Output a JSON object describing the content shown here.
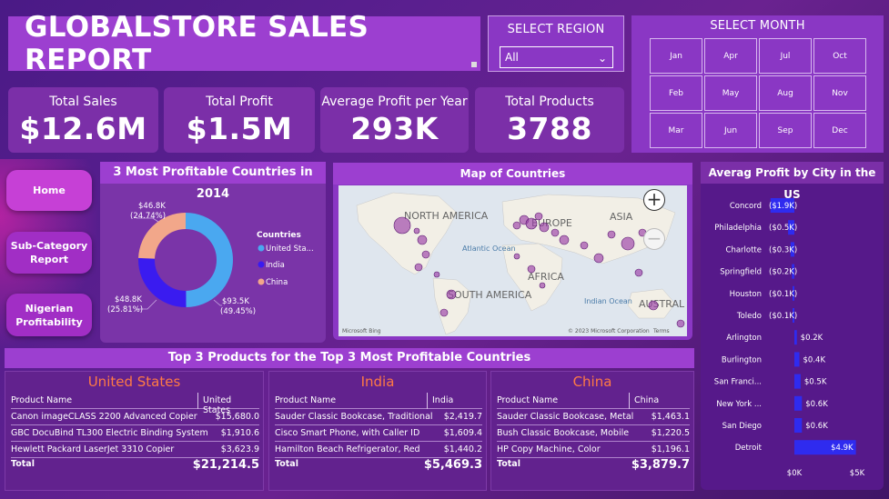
{
  "title": "GLOBALSTORE SALES REPORT",
  "region": {
    "label": "SELECT REGION",
    "selected": "All"
  },
  "month": {
    "label": "SELECT MONTH",
    "months": [
      "Jan",
      "Apr",
      "Jul",
      "Oct",
      "Feb",
      "May",
      "Aug",
      "Nov",
      "Mar",
      "Jun",
      "Sep",
      "Dec"
    ]
  },
  "kpis": [
    {
      "label": "Total Sales",
      "value": "$12.6M"
    },
    {
      "label": "Total Profit",
      "value": "$1.5M"
    },
    {
      "label": "Average Profit per Year",
      "value": "293K"
    },
    {
      "label": "Total Products",
      "value": "3788"
    }
  ],
  "nav": {
    "home": "Home",
    "subcategory": "Sub-Category Report",
    "nigerian": "Nigerian Profitability"
  },
  "donut": {
    "title": "3 Most Profitable Countries in 2014",
    "legend_title": "Countries",
    "legend": [
      "United Sta...",
      "India",
      "China"
    ],
    "colors": [
      "#4aa8f0",
      "#3a1bf0",
      "#f2a78a"
    ],
    "labels": [
      {
        "value": "$93.5K",
        "pct": "(49.45%)"
      },
      {
        "value": "$48.8K",
        "pct": "(25.81%)"
      },
      {
        "value": "$46.8K",
        "pct": "(24.74%)"
      }
    ]
  },
  "map": {
    "title": "Map of Countries",
    "regions": [
      "NORTH AMERICA",
      "EUROPE",
      "ASIA",
      "SOUTH AMERICA",
      "AFRICA",
      "AUSTRAL"
    ],
    "oceans": [
      "Atlantic Ocean",
      "Indian Ocean"
    ],
    "copyright": "© 2023 Microsoft Corporation",
    "terms": "Terms",
    "brand": "Microsoft Bing"
  },
  "city": {
    "title": "Averag Profit by City in the US",
    "axis": [
      "$0K",
      "$5K"
    ]
  },
  "chart_data": {
    "type": "bar",
    "title": "Averag Profit by City in the US",
    "categories": [
      "Concord",
      "Philadelphia",
      "Charlotte",
      "Springfield",
      "Houston",
      "Toledo",
      "Arlington",
      "Burlington",
      "San Franci...",
      "New York ...",
      "San Diego",
      "Detroit"
    ],
    "values": [
      -1.9,
      -0.5,
      -0.3,
      -0.2,
      -0.1,
      -0.1,
      0.2,
      0.4,
      0.5,
      0.6,
      0.6,
      4.9
    ],
    "value_labels": [
      "($1.9K)",
      "($0.5K)",
      "($0.3K)",
      "($0.2K)",
      "($0.1K)",
      "($0.1K)",
      "$0.2K",
      "$0.4K",
      "$0.5K",
      "$0.6K",
      "$0.6K",
      "$4.9K"
    ],
    "xlim": [
      -1.9,
      5
    ],
    "xticks": [
      "$0K",
      "$5K"
    ],
    "bar_color": "#2f2bef"
  },
  "products": {
    "title": "Top 3 Products for the Top 3 Most Profitable Countries",
    "header_product": "Product Name",
    "total_label": "Total",
    "panels": [
      {
        "country": "United States",
        "col": "United States",
        "rows": [
          {
            "name": "Canon imageCLASS 2200 Advanced Copier",
            "value": "$15,680.0"
          },
          {
            "name": "GBC DocuBind TL300 Electric Binding System",
            "value": "$1,910.6"
          },
          {
            "name": "Hewlett Packard LaserJet 3310 Copier",
            "value": "$3,623.9"
          }
        ],
        "total": "$21,214.5"
      },
      {
        "country": "India",
        "col": "India",
        "rows": [
          {
            "name": "Sauder Classic Bookcase, Traditional",
            "value": "$2,419.7"
          },
          {
            "name": "Cisco Smart Phone, with Caller ID",
            "value": "$1,609.4"
          },
          {
            "name": "Hamilton Beach Refrigerator, Red",
            "value": "$1,440.2"
          }
        ],
        "total": "$5,469.3"
      },
      {
        "country": "China",
        "col": "China",
        "rows": [
          {
            "name": "Sauder Classic Bookcase, Metal",
            "value": "$1,463.1"
          },
          {
            "name": "Bush Classic Bookcase, Mobile",
            "value": "$1,220.5"
          },
          {
            "name": "HP Copy Machine, Color",
            "value": "$1,196.1"
          }
        ],
        "total": "$3,879.7"
      }
    ]
  }
}
